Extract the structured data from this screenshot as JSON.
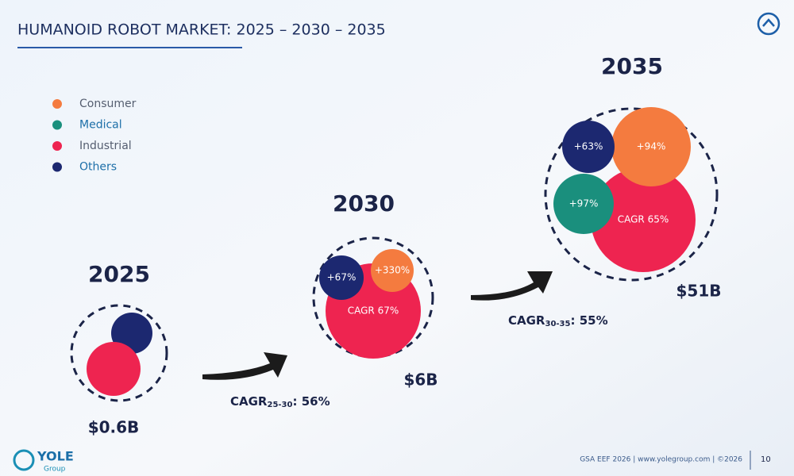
{
  "header": {
    "title": "HUMANOID ROBOT MARKET: 2025 – 2030 – 2035"
  },
  "legend": [
    {
      "label": "Consumer",
      "color": "#f47b3f"
    },
    {
      "label": "Medical",
      "color": "#1a8f7d"
    },
    {
      "label": "Industrial",
      "color": "#ee2450"
    },
    {
      "label": "Others",
      "color": "#1c2870"
    }
  ],
  "years": [
    {
      "year": "2025",
      "total": "$0.6B",
      "bubbles": []
    },
    {
      "year": "2030",
      "total": "$6B",
      "bubbles": [
        "CAGR 67%",
        "+67%",
        "+330%"
      ]
    },
    {
      "year": "2035",
      "total": "$51B",
      "bubbles": [
        "CAGR 65%",
        "+94%",
        "+63%",
        "+97%"
      ]
    }
  ],
  "transitions": [
    {
      "label": "CAGR",
      "period": "25-30",
      "value": ": 56%"
    },
    {
      "label": "CAGR",
      "period": "30-35",
      "value": ": 55%"
    }
  ],
  "footer": {
    "logo": "YOLE",
    "logo_sub": "Group",
    "source": "GSA EEF 2026 | www.yolegroup.com | ©2026",
    "page": "10"
  }
}
